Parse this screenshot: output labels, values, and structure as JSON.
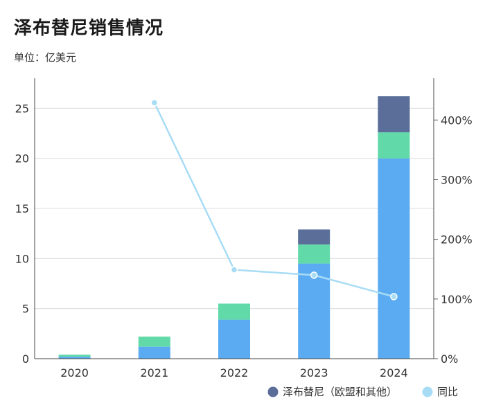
{
  "title": "泽布替尼销售情况",
  "unit_label": "单位：亿美元",
  "chart_data": {
    "type": "bar",
    "stacked": true,
    "categories": [
      "2020",
      "2021",
      "2022",
      "2023",
      "2024"
    ],
    "series": [
      {
        "name": "",
        "values": [
          0.2,
          1.2,
          3.9,
          9.5,
          20.0
        ],
        "color": "#5aabf2"
      },
      {
        "name": "",
        "values": [
          0.2,
          1.0,
          1.6,
          1.9,
          2.6
        ],
        "color": "#62d9a8"
      },
      {
        "name": "泽布替尼（欧盟和其他）",
        "values": [
          0.0,
          0.0,
          0.0,
          1.5,
          3.6
        ],
        "color": "#5a6e99"
      }
    ],
    "line_series": {
      "name": "同比",
      "values": [
        null,
        429,
        149,
        140,
        104
      ],
      "color": "#a8dcf5",
      "axis": "right"
    },
    "ylim": [
      0,
      28
    ],
    "y_ticks": [
      "0",
      "5",
      "10",
      "15",
      "20",
      "25"
    ],
    "y2lim": [
      0,
      470
    ],
    "y2_ticks": [
      "0%",
      "100%",
      "200%",
      "300%",
      "400%"
    ],
    "grid": true,
    "legend_position": "bottom-right"
  }
}
